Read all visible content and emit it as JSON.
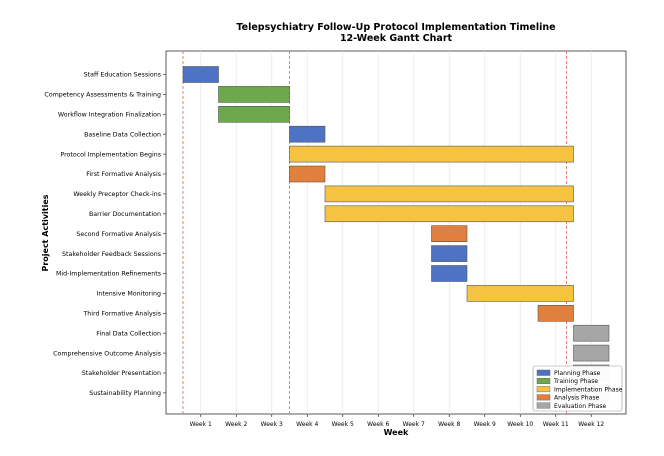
{
  "chart_data": {
    "type": "gantt",
    "title": "Telepsychiatry Follow-Up Protocol Implementation Timeline",
    "subtitle": "12-Week Gantt Chart",
    "xlabel": "Week",
    "ylabel": "Project Activities",
    "x_tick_labels": [
      "Week 1",
      "Week 2",
      "Week 3",
      "Week 4",
      "Week 5",
      "Week 6",
      "Week 7",
      "Week 8",
      "Week 9",
      "Week 10",
      "Week 11",
      "Week 12"
    ],
    "xlim": [
      -0.05,
      13
    ],
    "grid": "x",
    "vertical_markers": [
      0.5,
      3.5,
      11.3
    ],
    "legend_position": "bottom-right",
    "phases": [
      {
        "name": "Planning Phase",
        "color": "#4e73c5"
      },
      {
        "name": "Training Phase",
        "color": "#6ea84d"
      },
      {
        "name": "Implementation Phase",
        "color": "#f5c242"
      },
      {
        "name": "Analysis Phase",
        "color": "#e0803c"
      },
      {
        "name": "Evaluation Phase",
        "color": "#a6a6a6"
      }
    ],
    "tasks": [
      {
        "name": "Staff Education Sessions",
        "start": 0.5,
        "end": 1.5,
        "phase": 0
      },
      {
        "name": "Competency Assessments & Training",
        "start": 1.5,
        "end": 3.5,
        "phase": 1
      },
      {
        "name": "Workflow Integration Finalization",
        "start": 1.5,
        "end": 3.5,
        "phase": 1
      },
      {
        "name": "Baseline Data Collection",
        "start": 3.5,
        "end": 4.5,
        "phase": 0
      },
      {
        "name": "Protocol Implementation Begins",
        "start": 3.5,
        "end": 11.5,
        "phase": 2
      },
      {
        "name": "First Formative Analysis",
        "start": 3.5,
        "end": 4.5,
        "phase": 3
      },
      {
        "name": "Weekly Preceptor Check-ins",
        "start": 4.5,
        "end": 11.5,
        "phase": 2
      },
      {
        "name": "Barrier Documentation",
        "start": 4.5,
        "end": 11.5,
        "phase": 2
      },
      {
        "name": "Second Formative Analysis",
        "start": 7.5,
        "end": 8.5,
        "phase": 3
      },
      {
        "name": "Stakeholder Feedback Sessions",
        "start": 7.5,
        "end": 8.5,
        "phase": 0
      },
      {
        "name": "Mid-Implementation Refinements",
        "start": 7.5,
        "end": 8.5,
        "phase": 0
      },
      {
        "name": "Intensive Monitoring",
        "start": 8.5,
        "end": 11.5,
        "phase": 2
      },
      {
        "name": "Third Formative Analysis",
        "start": 10.5,
        "end": 11.5,
        "phase": 3
      },
      {
        "name": "Final Data Collection",
        "start": 11.5,
        "end": 12.5,
        "phase": 4
      },
      {
        "name": "Comprehensive Outcome Analysis",
        "start": 11.5,
        "end": 12.5,
        "phase": 4
      },
      {
        "name": "Stakeholder Presentation",
        "start": 11.5,
        "end": 12.5,
        "phase": 4
      },
      {
        "name": "Sustainability Planning",
        "start": 11.5,
        "end": 12.5,
        "phase": 4
      }
    ]
  }
}
